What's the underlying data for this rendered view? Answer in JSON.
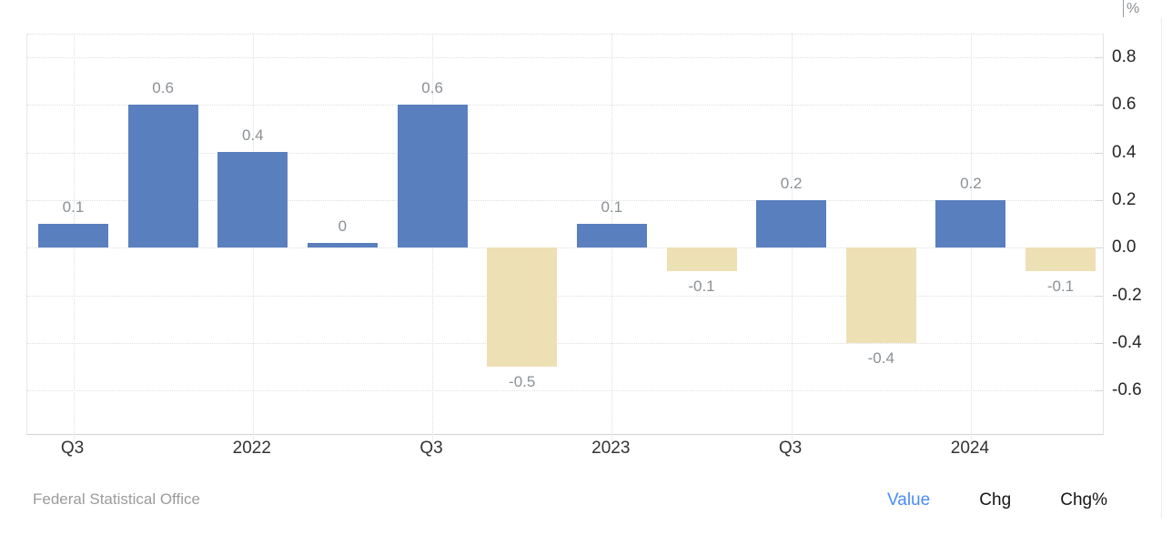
{
  "chart_data": {
    "type": "bar",
    "title": "",
    "unit": "%",
    "values": [
      0.1,
      0.6,
      0.4,
      0,
      0.6,
      -0.5,
      0.1,
      -0.1,
      0.2,
      -0.4,
      0.2,
      -0.1
    ],
    "bar_value_labels": [
      "0.1",
      "0.6",
      "0.4",
      "0",
      "0.6",
      "-0.5",
      "0.1",
      "-0.1",
      "0.2",
      "-0.4",
      "0.2",
      "-0.1"
    ],
    "x_ticks": [
      {
        "bar_index": 0,
        "label": "Q3"
      },
      {
        "bar_index": 2,
        "label": "2022"
      },
      {
        "bar_index": 4,
        "label": "Q3"
      },
      {
        "bar_index": 6,
        "label": "2023"
      },
      {
        "bar_index": 8,
        "label": "Q3"
      },
      {
        "bar_index": 10,
        "label": "2024"
      }
    ],
    "y_ticks": [
      0.8,
      0.6,
      0.4,
      0.2,
      0.0,
      -0.2,
      -0.4,
      -0.6
    ],
    "y_tick_labels": [
      "0.8",
      "0.6",
      "0.4",
      "0.2",
      "0.0",
      "-0.2",
      "-0.4",
      "-0.6"
    ],
    "ylim": [
      -0.787,
      0.9
    ],
    "grid": "dotted",
    "legend_position": "none",
    "colors": {
      "positive_bar": "#5a7fbe",
      "negative_bar": "#eee0b5",
      "bar_label": "#8b9095",
      "x_label": "#333333",
      "y_label": "#262626",
      "grid": "#dedede"
    }
  },
  "footer": {
    "source": "Federal Statistical Office",
    "toggles": [
      {
        "label": "Value",
        "active": true
      },
      {
        "label": "Chg",
        "active": false
      },
      {
        "label": "Chg%",
        "active": false
      }
    ],
    "active_color": "#4a8cf7",
    "inactive_color": "#151515"
  }
}
